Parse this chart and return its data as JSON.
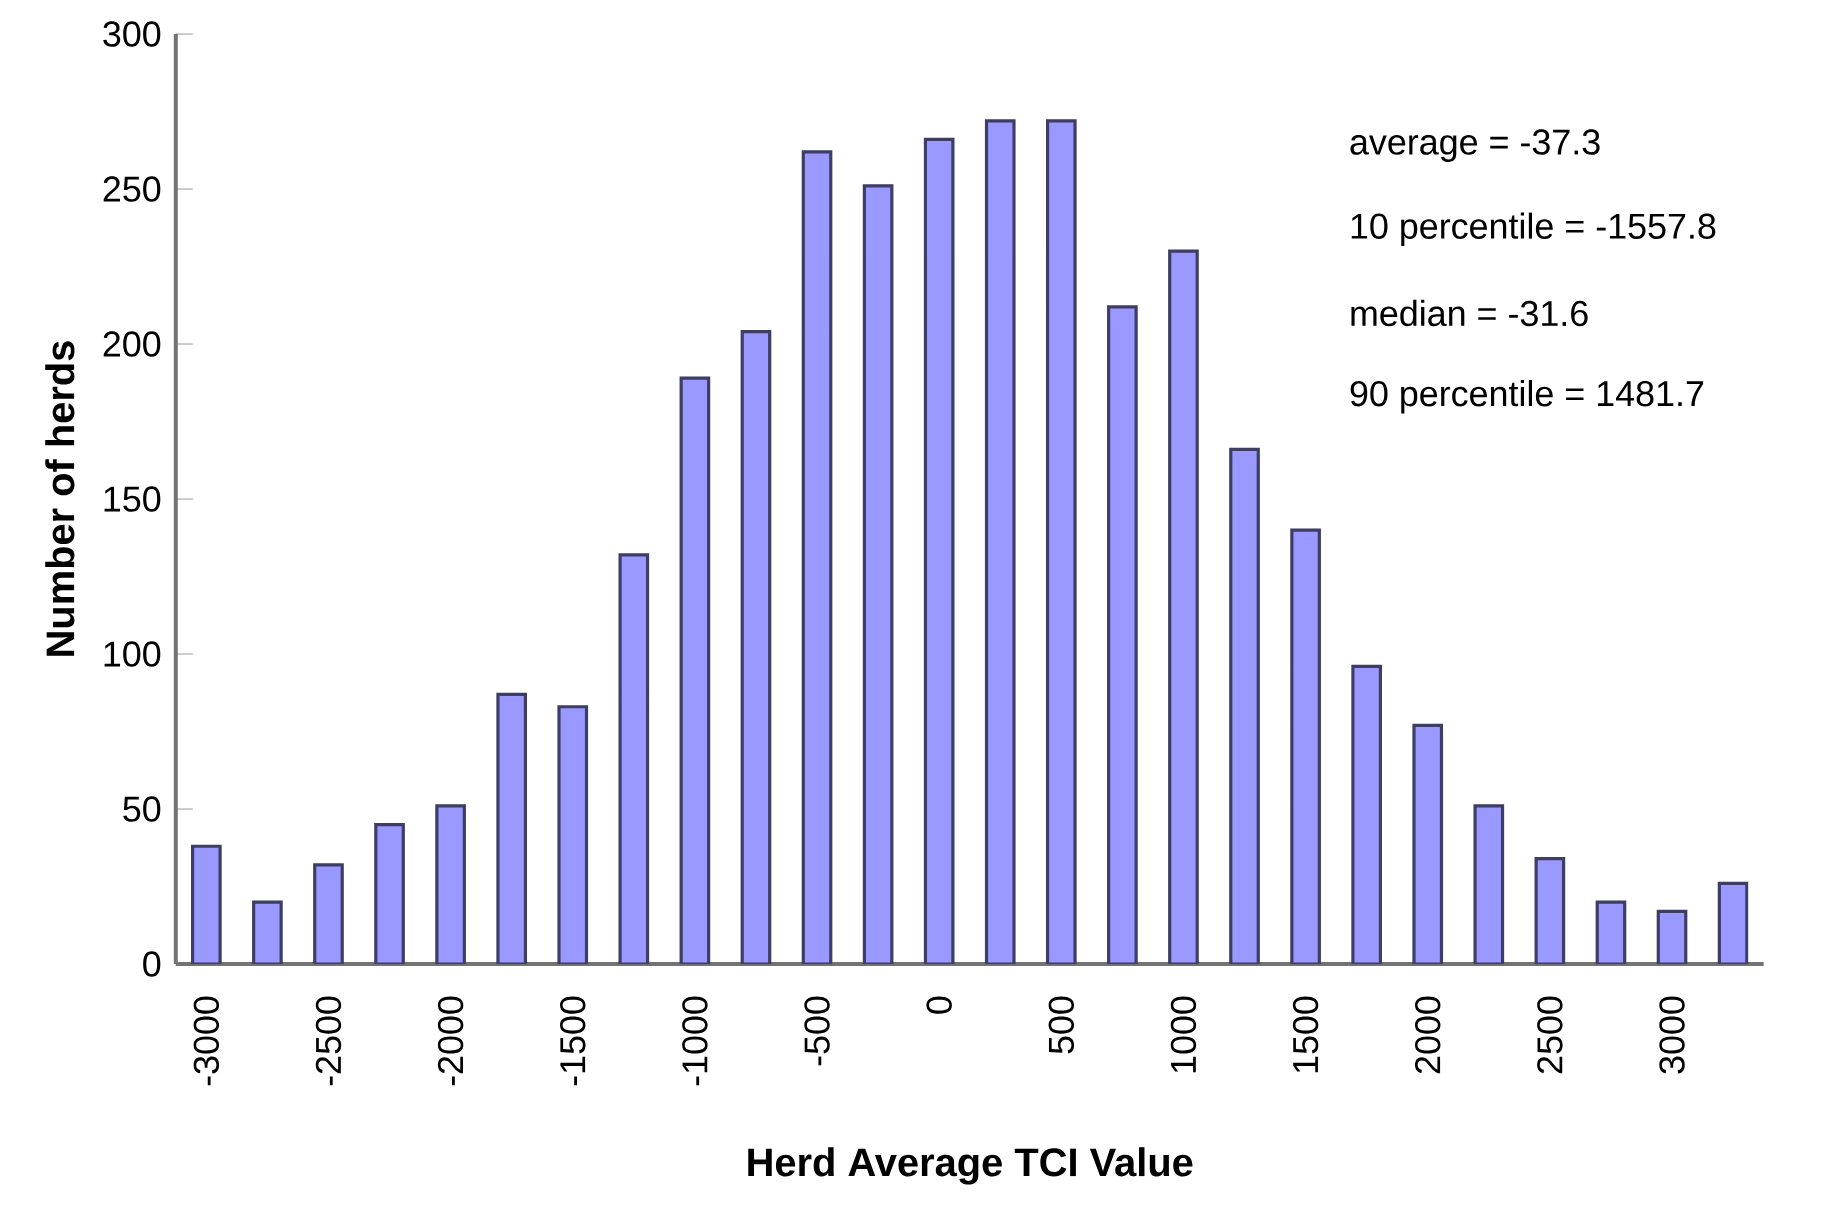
{
  "chart_data": {
    "type": "bar",
    "xlabel": "Herd Average TCI Value",
    "ylabel": "Number of herds",
    "categories": [
      "-3000",
      null,
      "-2500",
      null,
      "-2000",
      null,
      "-1500",
      null,
      "-1000",
      null,
      "-500",
      null,
      "0",
      null,
      "500",
      null,
      "1000",
      null,
      "1500",
      null,
      "2000",
      null,
      "2500",
      null,
      "3000",
      null
    ],
    "values": [
      38,
      20,
      32,
      45,
      51,
      87,
      83,
      132,
      189,
      204,
      262,
      251,
      266,
      272,
      272,
      212,
      230,
      166,
      140,
      96,
      77,
      51,
      34,
      20,
      17,
      26
    ],
    "color": "#9999ff",
    "ylim": [
      0,
      300
    ],
    "yticks": [
      0,
      50,
      100,
      150,
      200,
      250,
      300
    ],
    "grid": false,
    "annotations": [
      "average = -37.3",
      "10 percentile = -1557.8",
      "median = -31.6",
      "90 percentile = 1481.7"
    ]
  }
}
